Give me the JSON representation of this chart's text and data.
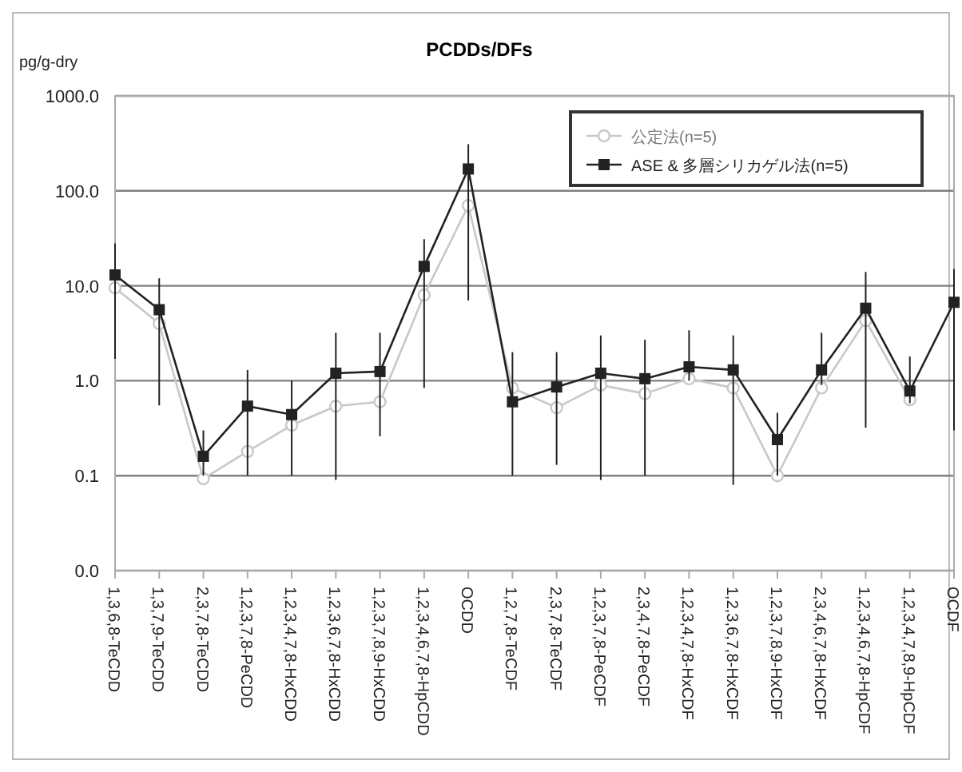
{
  "chart_data": {
    "type": "line",
    "title": "PCDDs/DFs",
    "ylabel": "pg/g-dry",
    "categories": [
      "1,3,6,8-TeCDD",
      "1,3,7,9-TeCDD",
      "2,3,7,8-TeCDD",
      "1,2,3,7,8-PeCDD",
      "1,2,3,4,7,8-HxCDD",
      "1,2,3,6,7,8-HxCDD",
      "1,2,3,7,8,9-HxCDD",
      "1,2,3,4,6,7,8-HpCDD",
      "OCDD",
      "1,2,7,8-TeCDF",
      "2,3,7,8-TeCDF",
      "1,2,3,7,8-PeCDF",
      "2,3,4,7,8-PeCDF",
      "1,2,3,4,7,8-HxCDF",
      "1,2,3,6,7,8-HxCDF",
      "1,2,3,7,8,9-HxCDF",
      "2,3,4,6,7,8-HxCDF",
      "1,2,3,4,6,7,8-HpCDF",
      "1,2,3,4,7,8,9-HpCDF",
      "OCDF"
    ],
    "series": [
      {
        "name": "公定法(n=5)",
        "color": "#c8c8c8",
        "marker": "circle",
        "values": [
          9.5,
          4,
          0.093,
          0.18,
          0.34,
          0.54,
          0.6,
          8,
          70,
          0.84,
          0.52,
          0.9,
          0.73,
          1.05,
          0.84,
          0.1,
          0.84,
          4.3,
          0.63,
          null
        ]
      },
      {
        "name": "ASE & 多層シリカゲル法(n=5)",
        "color": "#222222",
        "marker": "square",
        "values": [
          13,
          5.6,
          0.16,
          0.54,
          0.44,
          1.2,
          1.25,
          16,
          170,
          0.6,
          0.86,
          1.2,
          1.05,
          1.4,
          1.3,
          0.24,
          1.3,
          5.8,
          0.78,
          6.7
        ],
        "errors": [
          [
            1.7,
            28
          ],
          [
            0.55,
            12
          ],
          [
            0.1,
            0.3
          ],
          [
            0.1,
            1.3
          ],
          [
            0.1,
            1.0
          ],
          [
            0.09,
            3.2
          ],
          [
            0.26,
            3.2
          ],
          [
            0.84,
            31
          ],
          [
            7,
            310
          ],
          [
            0.1,
            2
          ],
          [
            0.13,
            2
          ],
          [
            0.09,
            3
          ],
          [
            0.1,
            2.7
          ],
          [
            1,
            3.4
          ],
          [
            0.08,
            3
          ],
          [
            0.1,
            0.46
          ],
          [
            0.9,
            3.2
          ],
          [
            0.32,
            14
          ],
          [
            0.58,
            1.8
          ],
          [
            0.3,
            15
          ]
        ]
      }
    ],
    "log": true,
    "ylim": [
      0.01,
      1000
    ],
    "yticks": [
      {
        "value": 0.01,
        "label": "0.0"
      },
      {
        "value": 0.1,
        "label": "0.1"
      },
      {
        "value": 1,
        "label": "1.0"
      },
      {
        "value": 10,
        "label": "10.0"
      },
      {
        "value": 100,
        "label": "100.0"
      },
      {
        "value": 1000,
        "label": "1000.0"
      }
    ],
    "grid": "y",
    "legend": "top right"
  }
}
